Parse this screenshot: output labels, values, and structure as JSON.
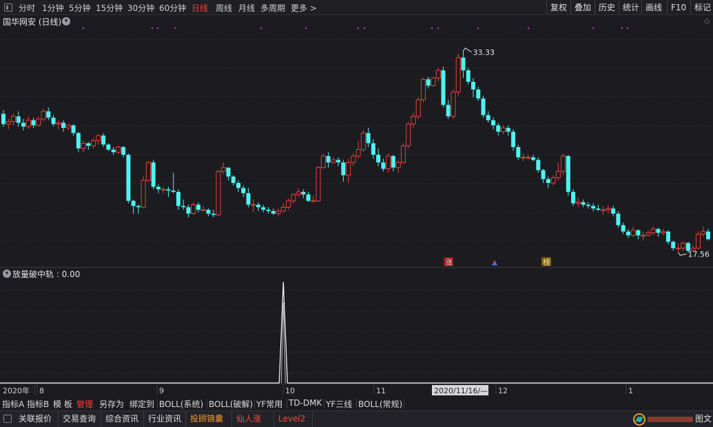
{
  "toolbar": {
    "periods": [
      "分时",
      "1分钟",
      "5分钟",
      "15分钟",
      "30分钟",
      "60分钟",
      "日线",
      "周线",
      "月线",
      "多周期",
      "更多 >"
    ],
    "active_period": "日线",
    "right_buttons": [
      "复权",
      "叠加",
      "历史",
      "统计",
      "画线",
      "F10",
      "标记"
    ]
  },
  "main_chart": {
    "title": "国华网安 (日线)",
    "high_label": "33.33",
    "low_label": "17.56",
    "tag_zhang": "涨",
    "tag_bang": "榜"
  },
  "indicator": {
    "title": "放量破中轨 : 0.00"
  },
  "x_axis": {
    "labels": [
      "2020年",
      "8",
      "9",
      "10",
      "11",
      "12",
      "1"
    ],
    "cursor_date": "2020/11/16/—"
  },
  "indicator_tabs": [
    "指标A",
    "指标B",
    "模 板",
    "管理",
    "另存为",
    "绑定到",
    "BOLL(系统)",
    "BOLL(破解)",
    "YF常用",
    "TD-DMK",
    "YF三线",
    "BOLL(常规)"
  ],
  "active_indicator_tab": "管理",
  "bottom_tabs": [
    "关联报价",
    "交易查询",
    "综合资讯",
    "行业资讯",
    "投顾锦囊",
    "仙人涨",
    "Level2"
  ],
  "bottom_tab_colors": {
    "投顾锦囊": "#ff9a2a",
    "仙人涨": "#ff4a3a",
    "Level2": "#ff4a3a"
  },
  "bottom_right_label": "图文",
  "colors": {
    "up": "#e8403c",
    "down": "#4ff2f2",
    "background": "#1c1c20",
    "accent_red": "#ff3a3a"
  },
  "chart_data": {
    "type": "candlestick",
    "title": "国华网安 (日线)",
    "ylim": [
      16.5,
      34.5
    ],
    "x_ticks": [
      "2020年",
      "8",
      "9",
      "10",
      "11",
      "12",
      "1"
    ],
    "highest": 33.33,
    "lowest": 17.56,
    "candles": [
      [
        28.4,
        27.6,
        28.7,
        27.4
      ],
      [
        27.6,
        27.8,
        28.0,
        27.2
      ],
      [
        27.8,
        28.2,
        28.4,
        27.5
      ],
      [
        28.2,
        27.7,
        28.6,
        27.4
      ],
      [
        27.7,
        27.4,
        28.0,
        27.1
      ],
      [
        27.4,
        27.9,
        28.2,
        27.2
      ],
      [
        27.9,
        27.5,
        28.1,
        27.3
      ],
      [
        27.5,
        28.0,
        28.2,
        27.4
      ],
      [
        28.0,
        28.6,
        28.8,
        27.8
      ],
      [
        28.6,
        28.1,
        28.9,
        27.9
      ],
      [
        28.1,
        27.6,
        28.3,
        27.4
      ],
      [
        27.6,
        27.7,
        27.9,
        27.2
      ],
      [
        27.7,
        27.3,
        27.9,
        27.0
      ],
      [
        27.3,
        27.5,
        27.6,
        27.1
      ],
      [
        27.5,
        26.9,
        27.6,
        26.7
      ],
      [
        26.9,
        25.7,
        27.0,
        25.4
      ],
      [
        25.7,
        26.1,
        26.3,
        25.4
      ],
      [
        26.1,
        25.9,
        26.2,
        25.6
      ],
      [
        25.9,
        26.3,
        26.5,
        25.7
      ],
      [
        26.3,
        26.7,
        26.8,
        26.0
      ],
      [
        26.7,
        26.0,
        26.9,
        25.8
      ],
      [
        26.0,
        25.6,
        26.1,
        25.5
      ],
      [
        25.6,
        25.4,
        25.8,
        25.2
      ],
      [
        25.4,
        25.8,
        25.9,
        25.3
      ],
      [
        25.8,
        25.2,
        25.9,
        25.0
      ],
      [
        25.2,
        21.6,
        25.3,
        21.4
      ],
      [
        21.6,
        21.2,
        21.7,
        20.6
      ],
      [
        21.2,
        21.1,
        21.3,
        20.6
      ],
      [
        21.1,
        23.2,
        23.5,
        21.0
      ],
      [
        23.2,
        24.6,
        24.7,
        23.1
      ],
      [
        24.6,
        22.7,
        24.8,
        22.5
      ],
      [
        22.7,
        22.5,
        22.9,
        22.2
      ],
      [
        22.5,
        22.5,
        22.7,
        22.2
      ],
      [
        22.5,
        22.4,
        22.7,
        21.9
      ],
      [
        22.4,
        22.3,
        23.8,
        22.2
      ],
      [
        22.3,
        21.2,
        22.5,
        20.9
      ],
      [
        21.2,
        21.1,
        21.7,
        20.9
      ],
      [
        21.1,
        20.6,
        21.3,
        20.3
      ],
      [
        20.6,
        21.3,
        21.5,
        20.5
      ],
      [
        21.3,
        20.9,
        21.5,
        20.7
      ],
      [
        20.9,
        20.9,
        21.2,
        20.8
      ],
      [
        20.9,
        20.6,
        21.0,
        20.4
      ],
      [
        20.6,
        20.5,
        20.9,
        20.3
      ],
      [
        20.5,
        23.9,
        24.0,
        20.4
      ],
      [
        23.9,
        24.2,
        24.6,
        23.7
      ],
      [
        24.2,
        23.5,
        24.2,
        23.2
      ],
      [
        23.5,
        23.0,
        23.6,
        22.8
      ],
      [
        23.0,
        22.6,
        23.2,
        22.3
      ],
      [
        22.6,
        22.2,
        22.8,
        21.9
      ],
      [
        22.2,
        21.3,
        22.6,
        21.1
      ],
      [
        21.3,
        21.3,
        21.7,
        20.7
      ],
      [
        21.3,
        21.1,
        21.5,
        20.8
      ],
      [
        21.1,
        20.9,
        21.3,
        20.7
      ],
      [
        20.9,
        20.8,
        21.1,
        20.6
      ],
      [
        20.8,
        20.6,
        21.0,
        20.5
      ],
      [
        20.6,
        20.8,
        21.0,
        20.4
      ],
      [
        20.8,
        21.1,
        21.4,
        20.7
      ],
      [
        21.1,
        21.6,
        21.8,
        20.9
      ],
      [
        21.6,
        22.1,
        22.2,
        21.4
      ],
      [
        22.1,
        22.3,
        22.6,
        21.9
      ],
      [
        22.3,
        22.1,
        22.5,
        21.8
      ],
      [
        22.1,
        21.6,
        22.3,
        21.5
      ],
      [
        21.6,
        21.6,
        22.0,
        21.5
      ],
      [
        21.6,
        24.2,
        24.3,
        21.5
      ],
      [
        24.2,
        25.1,
        25.3,
        24.1
      ],
      [
        25.1,
        24.6,
        25.4,
        24.2
      ],
      [
        24.6,
        24.8,
        25.0,
        24.5
      ],
      [
        24.8,
        24.6,
        25.0,
        24.3
      ],
      [
        24.6,
        23.6,
        24.8,
        23.1
      ],
      [
        23.6,
        24.6,
        24.9,
        23.0
      ],
      [
        24.6,
        25.1,
        25.3,
        24.3
      ],
      [
        25.1,
        25.6,
        26.3,
        24.9
      ],
      [
        25.6,
        26.9,
        27.1,
        25.4
      ],
      [
        26.9,
        26.1,
        27.3,
        25.8
      ],
      [
        26.1,
        25.2,
        26.4,
        24.9
      ],
      [
        25.2,
        24.6,
        25.7,
        24.3
      ],
      [
        24.6,
        24.1,
        24.9,
        23.9
      ],
      [
        24.1,
        25.1,
        25.3,
        23.8
      ],
      [
        25.1,
        24.2,
        25.2,
        23.9
      ],
      [
        24.2,
        24.6,
        24.8,
        23.8
      ],
      [
        24.6,
        25.9,
        26.1,
        24.5
      ],
      [
        25.9,
        27.6,
        27.8,
        25.7
      ],
      [
        27.6,
        28.2,
        28.5,
        27.3
      ],
      [
        28.2,
        29.5,
        29.7,
        28.0
      ],
      [
        29.5,
        31.1,
        31.2,
        29.3
      ],
      [
        31.1,
        30.6,
        31.3,
        30.4
      ],
      [
        30.6,
        31.2,
        31.3,
        30.5
      ],
      [
        31.2,
        31.8,
        32.0,
        30.9
      ],
      [
        31.8,
        29.1,
        32.1,
        28.9
      ],
      [
        29.1,
        28.2,
        29.5,
        28.0
      ],
      [
        28.2,
        30.1,
        30.3,
        28.0
      ],
      [
        30.1,
        32.8,
        33.1,
        29.8
      ],
      [
        32.8,
        31.8,
        33.33,
        31.2
      ],
      [
        31.8,
        30.9,
        32.0,
        30.7
      ],
      [
        30.9,
        30.3,
        31.2,
        29.7
      ],
      [
        30.3,
        29.6,
        30.5,
        29.4
      ],
      [
        29.6,
        28.3,
        29.8,
        28.1
      ],
      [
        28.3,
        27.9,
        28.6,
        27.7
      ],
      [
        27.9,
        27.5,
        28.1,
        27.2
      ],
      [
        27.5,
        27.0,
        27.7,
        26.7
      ],
      [
        27.0,
        27.3,
        27.5,
        26.8
      ],
      [
        27.3,
        27.0,
        27.5,
        26.7
      ],
      [
        27.0,
        25.8,
        27.2,
        25.5
      ],
      [
        25.8,
        25.0,
        26.0,
        24.8
      ],
      [
        25.0,
        25.0,
        25.3,
        24.7
      ],
      [
        25.0,
        25.0,
        25.2,
        24.8
      ],
      [
        25.0,
        24.8,
        25.2,
        24.7
      ],
      [
        24.8,
        24.0,
        25.0,
        23.8
      ],
      [
        24.0,
        23.3,
        24.1,
        23.0
      ],
      [
        23.3,
        23.0,
        23.5,
        22.6
      ],
      [
        23.0,
        23.4,
        23.6,
        22.8
      ],
      [
        23.4,
        23.9,
        24.6,
        23.2
      ],
      [
        23.9,
        25.1,
        25.3,
        23.6
      ],
      [
        25.1,
        22.3,
        25.2,
        22.0
      ],
      [
        22.3,
        21.4,
        22.5,
        21.2
      ],
      [
        21.4,
        21.5,
        21.9,
        21.1
      ],
      [
        21.5,
        21.3,
        21.7,
        21.1
      ],
      [
        21.3,
        21.2,
        21.5,
        21.0
      ],
      [
        21.2,
        21.0,
        21.4,
        20.8
      ],
      [
        21.0,
        20.9,
        21.3,
        20.8
      ],
      [
        20.9,
        20.9,
        21.2,
        20.5
      ],
      [
        20.9,
        21.0,
        21.3,
        20.6
      ],
      [
        21.0,
        20.6,
        21.2,
        20.4
      ],
      [
        20.6,
        19.7,
        20.8,
        19.5
      ],
      [
        19.7,
        19.2,
        19.9,
        19.0
      ],
      [
        19.2,
        18.9,
        19.4,
        18.7
      ],
      [
        18.9,
        19.3,
        19.6,
        18.8
      ],
      [
        19.3,
        18.9,
        19.4,
        18.6
      ],
      [
        18.9,
        18.9,
        19.2,
        18.5
      ],
      [
        18.9,
        19.1,
        19.3,
        18.8
      ],
      [
        19.1,
        19.4,
        19.6,
        18.9
      ],
      [
        19.4,
        19.1,
        19.5,
        18.8
      ],
      [
        19.1,
        19.2,
        19.4,
        18.9
      ],
      [
        19.2,
        18.4,
        19.3,
        18.2
      ],
      [
        18.4,
        17.9,
        18.5,
        17.7
      ],
      [
        17.9,
        17.9,
        18.3,
        17.56
      ],
      [
        17.9,
        18.3,
        18.4,
        17.7
      ],
      [
        18.3,
        17.7,
        18.4,
        17.56
      ],
      [
        17.7,
        17.9,
        18.1,
        17.6
      ],
      [
        17.9,
        19.0,
        19.2,
        17.8
      ],
      [
        19.0,
        19.2,
        19.6,
        18.8
      ],
      [
        19.2,
        18.6,
        19.4,
        18.5
      ]
    ],
    "indicator_series": {
      "name": "放量破中轨",
      "last_value": 0.0,
      "spike_index": 56,
      "spike_value": 1
    }
  }
}
